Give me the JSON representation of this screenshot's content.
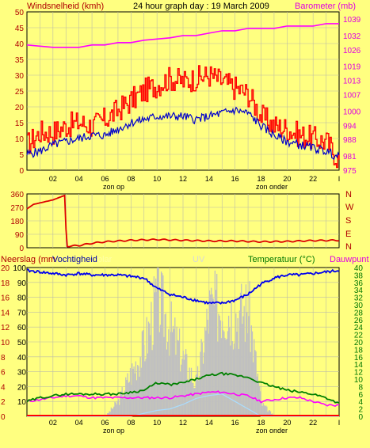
{
  "header": {
    "left_label": "Windsnelheid (kmh)",
    "title": "24 hour graph day : 19 March 2009",
    "right_label": "Barometer (mb)"
  },
  "panel3_header": {
    "neerslag": "Neerslag (mm",
    "vochtigheid": "Vochtigheid",
    "solar": "olar",
    "uv": "UV",
    "temperatuur": "Temperatuur (°C)",
    "dauwpunt": "Dauwpunt"
  },
  "x_axis": {
    "ticks": [
      "02",
      "04",
      "06",
      "08",
      "10",
      "12",
      "14",
      "16",
      "18",
      "20",
      "22",
      "I"
    ],
    "sunrise": "zon op",
    "sunset": "zon onder"
  },
  "colors": {
    "background": "#FFFF80",
    "grid": "#BDBDA6",
    "wind": "#FF0000",
    "avg_wind": "#0000CC",
    "barometer": "#FF00FF",
    "direction": "#DD0000",
    "humidity": "#0000EE",
    "temperature": "#008000",
    "dewpoint": "#FF00FF",
    "solar": "#C0C0C0",
    "uv": "#AADDFF",
    "rain": "#FF0000",
    "left_axis_text": "#B00000",
    "barometer_text": "#E000E0",
    "temp_text": "#007700",
    "dark_text": "#000000"
  },
  "chart_data": [
    {
      "type": "line",
      "title": "24 hour graph day : 19 March 2009",
      "ylabel": "Windsnelheid (kmh)",
      "ylabel_right": "Barometer (mb)",
      "x_hours": [
        0,
        1,
        2,
        3,
        4,
        5,
        6,
        7,
        8,
        9,
        10,
        11,
        12,
        13,
        14,
        15,
        16,
        17,
        18,
        19,
        20,
        21,
        22,
        23,
        24
      ],
      "ylim": [
        0,
        50
      ],
      "y_ticks": [
        "0",
        "5",
        "10",
        "15",
        "20",
        "25",
        "30",
        "35",
        "40",
        "45",
        "50"
      ],
      "y2lim": [
        975,
        1042
      ],
      "y2_ticks": [
        "975",
        "981",
        "988",
        "994",
        "1000",
        "1007",
        "1013",
        "1019",
        "1026",
        "1032",
        "1039"
      ],
      "series": [
        {
          "key": "gust",
          "values": [
            8,
            12,
            12,
            14,
            15,
            14,
            16,
            19,
            22,
            25,
            27,
            29,
            28,
            29,
            30,
            28,
            26,
            24,
            17,
            14,
            13,
            11,
            10,
            9,
            3
          ]
        },
        {
          "key": "avg",
          "values": [
            5,
            6,
            8,
            9,
            10,
            11,
            11,
            13,
            15,
            16,
            17,
            17,
            17,
            16,
            17,
            18,
            19,
            18,
            14,
            11,
            9,
            8,
            7,
            6,
            4
          ]
        },
        {
          "key": "barometer",
          "values": [
            1028,
            1027.5,
            1027,
            1027,
            1027,
            1028,
            1028,
            1029,
            1029,
            1030,
            1030.5,
            1031,
            1032,
            1032,
            1033,
            1034,
            1034,
            1035,
            1035,
            1035,
            1036,
            1036,
            1036,
            1037,
            1037
          ]
        }
      ]
    },
    {
      "type": "line",
      "ylabel_right": "N W S E N",
      "right_letters": [
        "N",
        "W",
        "S",
        "E",
        "N"
      ],
      "ylim": [
        0,
        360
      ],
      "y_ticks": [
        "0",
        "90",
        "180",
        "270",
        "360"
      ],
      "series": [
        {
          "key": "direction",
          "x_hours": [
            0,
            0.5,
            1,
            2,
            2.9,
            3.05,
            4,
            5,
            6,
            8,
            10,
            12,
            14,
            16,
            18,
            20,
            22,
            24
          ],
          "values": [
            260,
            290,
            300,
            320,
            350,
            10,
            15,
            30,
            40,
            50,
            55,
            50,
            45,
            45,
            40,
            42,
            48,
            50
          ]
        }
      ]
    },
    {
      "type": "line",
      "ylabel": "Neerslag (mm / Vochtigheid",
      "ylabel_right": "Temperatuur (°C) / Dauwpunt",
      "ylim": [
        0,
        100
      ],
      "y_ticks_outer": [
        "0",
        "2",
        "4",
        "6",
        "8",
        "10",
        "12",
        "14",
        "16",
        "18",
        "20"
      ],
      "y_ticks_inner": [
        "10",
        "20",
        "30",
        "40",
        "50",
        "60",
        "70",
        "80",
        "90",
        "100"
      ],
      "y2lim": [
        0,
        40
      ],
      "y2_ticks": [
        "0",
        "2",
        "4",
        "6",
        "8",
        "10",
        "12",
        "14",
        "16",
        "18",
        "20",
        "22",
        "24",
        "26",
        "28",
        "30",
        "32",
        "34",
        "36",
        "38",
        "40"
      ],
      "x_hours": [
        0,
        1,
        2,
        3,
        4,
        5,
        6,
        7,
        8,
        9,
        10,
        11,
        12,
        13,
        14,
        15,
        16,
        17,
        18,
        19,
        20,
        21,
        22,
        23,
        24
      ],
      "series": [
        {
          "key": "humidity",
          "values": [
            98,
            97,
            96,
            95,
            96,
            95,
            95,
            95,
            94,
            93,
            86,
            82,
            80,
            78,
            76,
            76,
            78,
            82,
            89,
            93,
            95,
            95,
            96,
            97,
            98
          ]
        },
        {
          "key": "temperature",
          "values": [
            4,
            5,
            5.5,
            6,
            6,
            6,
            6,
            6,
            6.5,
            7,
            9,
            8.5,
            9,
            10,
            11,
            11.5,
            11,
            10.5,
            9,
            8,
            7,
            6.5,
            6,
            5,
            3.5
          ]
        },
        {
          "key": "dewpoint",
          "values": [
            4,
            4.5,
            5,
            5.5,
            5.5,
            5,
            5,
            5,
            5,
            5,
            5,
            5,
            5.5,
            6,
            6.5,
            6.5,
            6,
            5.5,
            4,
            4.5,
            5,
            5,
            4,
            3,
            3
          ]
        },
        {
          "key": "solar",
          "values": [
            0,
            0,
            0,
            0,
            0,
            0,
            0,
            12,
            35,
            55,
            95,
            70,
            45,
            25,
            85,
            88,
            80,
            85,
            10,
            0,
            0,
            0,
            0,
            0,
            0
          ]
        },
        {
          "key": "uv",
          "values": [
            0,
            0,
            0,
            0,
            0,
            0,
            0,
            0,
            0,
            2,
            4,
            5,
            8,
            12,
            14,
            15,
            10,
            5,
            0,
            0,
            0,
            0,
            0,
            0,
            0
          ]
        },
        {
          "key": "rain",
          "values": [
            0,
            0,
            0,
            0,
            0,
            0,
            0,
            0,
            0,
            0,
            0,
            0,
            0,
            0,
            0,
            0,
            0,
            0,
            0,
            0,
            0,
            0,
            0,
            0,
            0
          ]
        }
      ]
    }
  ]
}
